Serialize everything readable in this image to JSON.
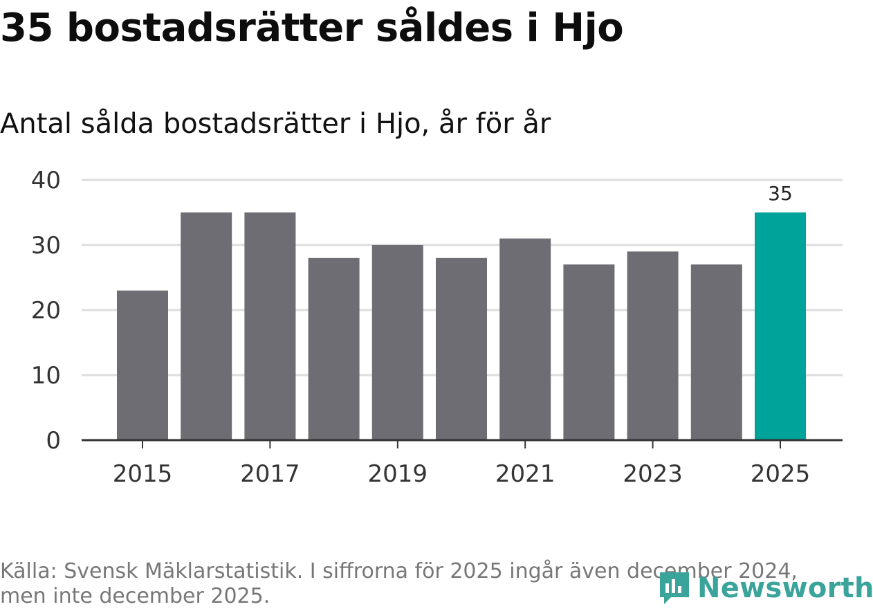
{
  "header": {
    "title": "35 bostadsrätter såldes i Hjo",
    "subtitle": "Antal sålda bostadsrätter i Hjo, år för år"
  },
  "chart_data": {
    "type": "bar",
    "title": "35 bostadsrätter såldes i Hjo",
    "subtitle": "Antal sålda bostadsrätter i Hjo, år för år",
    "categories": [
      "2015",
      "2016",
      "2017",
      "2018",
      "2019",
      "2020",
      "2021",
      "2022",
      "2023",
      "2024",
      "2025"
    ],
    "values": [
      23,
      35,
      35,
      28,
      30,
      28,
      31,
      27,
      29,
      27,
      35
    ],
    "xtick_labels": [
      "2015",
      "2017",
      "2019",
      "2021",
      "2023",
      "2025"
    ],
    "yticks": [
      0,
      10,
      20,
      30,
      40
    ],
    "ylim": [
      0,
      40
    ],
    "xlabel": "",
    "ylabel": "",
    "grid": true,
    "highlight_index": 10,
    "highlight_label": "35",
    "colors": {
      "bar": "#6e6d73",
      "highlight": "#00a39a",
      "grid": "#dddddd",
      "axis": "#333333"
    }
  },
  "footer": {
    "source": "Källa: Svensk Mäklarstatistik. I siffrorna för 2025 ingår även december 2024, men inte december 2025.",
    "brand": "Newsworthy",
    "brand_color": "#3aa39a",
    "brand_icon": "newsworthy-logo-icon"
  }
}
